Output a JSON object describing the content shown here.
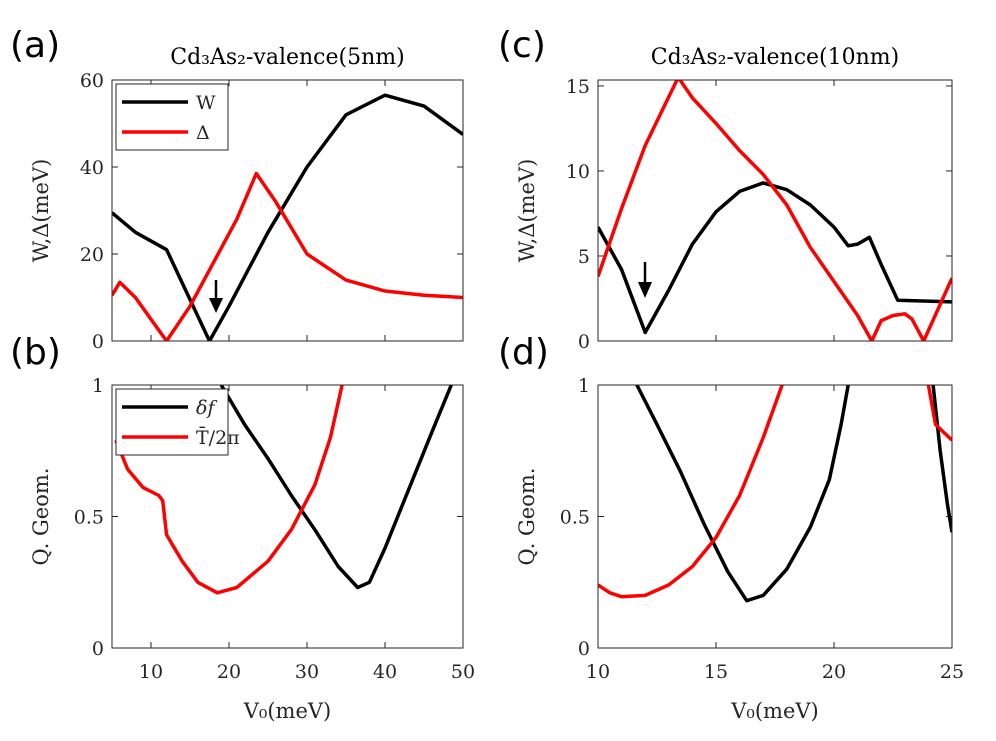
{
  "chart_data": [
    {
      "type": "line",
      "label": "(a)",
      "title": "Cd₃As₂-valence(5nm)",
      "ylabel": "W,Δ(meV)",
      "xlim": [
        5,
        50
      ],
      "xticks": [
        10,
        20,
        30,
        40,
        50
      ],
      "ylim": [
        0,
        60
      ],
      "yticks": [
        0,
        20,
        40,
        60
      ],
      "legend": "upper left",
      "series": [
        {
          "name": "W",
          "color": "#000000",
          "x": [
            5,
            8,
            12,
            17.5,
            20,
            25,
            30,
            35,
            40,
            45,
            50
          ],
          "values": [
            29.5,
            25,
            21,
            0,
            8,
            25,
            40,
            52,
            56.5,
            54,
            47.5
          ]
        },
        {
          "name": "Δ",
          "color": "#ff0000",
          "x": [
            5,
            6,
            8,
            10,
            12,
            15,
            18,
            21,
            23.5,
            26,
            30,
            35,
            40,
            45,
            50
          ],
          "values": [
            10.5,
            13.5,
            10,
            5,
            0,
            8,
            18,
            28,
            38.5,
            32,
            20,
            14,
            11.5,
            10.5,
            10
          ]
        }
      ]
    },
    {
      "type": "line",
      "label": "(b)",
      "ylabel": "Q. Geom.",
      "xlabel": "V₀(meV)",
      "xlim": [
        5,
        50
      ],
      "xticks": [
        10,
        20,
        30,
        40,
        50
      ],
      "ylim": [
        0,
        1
      ],
      "yticks": [
        0,
        0.5,
        1
      ],
      "legend": "upper left",
      "series": [
        {
          "name": "δf",
          "color": "#000000",
          "x": [
            19,
            22,
            25,
            28,
            31,
            34,
            36.5,
            38,
            40,
            43,
            46,
            48.5
          ],
          "values": [
            1.0,
            0.85,
            0.72,
            0.58,
            0.45,
            0.31,
            0.23,
            0.25,
            0.38,
            0.6,
            0.82,
            1.0
          ]
        },
        {
          "name": "T̄/2π",
          "color": "#ff0000",
          "x": [
            5.5,
            7,
            9,
            11,
            11.5,
            12,
            14,
            16,
            18.5,
            21,
            25,
            28,
            31,
            33,
            34.5
          ],
          "values": [
            0.79,
            0.68,
            0.61,
            0.58,
            0.56,
            0.43,
            0.33,
            0.25,
            0.21,
            0.23,
            0.33,
            0.45,
            0.62,
            0.8,
            1.0
          ]
        }
      ]
    },
    {
      "type": "line",
      "label": "(c)",
      "title": "Cd₃As₂-valence(10nm)",
      "ylabel": "W,Δ(meV)",
      "xlim": [
        10,
        25
      ],
      "xticks": [
        10,
        15,
        20,
        25
      ],
      "ylim": [
        0,
        15.35
      ],
      "yticks": [
        0,
        5,
        10,
        15
      ],
      "series": [
        {
          "name": "W",
          "color": "#000000",
          "x": [
            10,
            11,
            12,
            13,
            14,
            15,
            16,
            17,
            18,
            19,
            20,
            20.6,
            21,
            21.5,
            22,
            22.7,
            25
          ],
          "values": [
            6.7,
            4.2,
            0.5,
            3,
            5.7,
            7.6,
            8.8,
            9.3,
            8.9,
            8.0,
            6.7,
            5.6,
            5.7,
            6.1,
            4.5,
            2.4,
            2.3
          ]
        },
        {
          "name": "Δ",
          "color": "#ff0000",
          "x": [
            10,
            11,
            12,
            13.4,
            14,
            15,
            16,
            17,
            18,
            19,
            20,
            21,
            21.6,
            22,
            22.5,
            23,
            23.3,
            23.8,
            25
          ],
          "values": [
            3.8,
            7.8,
            11.5,
            15.5,
            14.3,
            12.8,
            11.2,
            9.8,
            8,
            5.5,
            3.5,
            1.5,
            0,
            1.2,
            1.5,
            1.6,
            1.3,
            0,
            3.7
          ]
        }
      ]
    },
    {
      "type": "line",
      "label": "(d)",
      "ylabel": "Q. Geom.",
      "xlabel": "V₀(meV)",
      "xlim": [
        10,
        25
      ],
      "xticks": [
        10,
        15,
        20,
        25
      ],
      "ylim": [
        0,
        1
      ],
      "yticks": [
        0,
        0.5,
        1
      ],
      "series": [
        {
          "name": "δf",
          "color": "#000000",
          "x": [
            11.65,
            12.5,
            13.5,
            14.5,
            15.5,
            16.3,
            17,
            18,
            19,
            19.8,
            20.3,
            20.6,
            null,
            24.2,
            24.5,
            24.8,
            25
          ],
          "values": [
            1.0,
            0.85,
            0.67,
            0.47,
            0.29,
            0.18,
            0.2,
            0.3,
            0.46,
            0.64,
            0.85,
            1.0,
            null,
            1.0,
            0.75,
            0.55,
            0.44
          ]
        },
        {
          "name": "T̄/2π",
          "color": "#ff0000",
          "x": [
            10,
            10.5,
            11,
            12,
            13,
            14,
            15,
            16,
            17,
            17.8,
            null,
            24,
            24.3,
            25
          ],
          "values": [
            0.24,
            0.21,
            0.195,
            0.2,
            0.24,
            0.31,
            0.42,
            0.58,
            0.8,
            1.0,
            null,
            1.0,
            0.85,
            0.79
          ]
        }
      ]
    }
  ]
}
